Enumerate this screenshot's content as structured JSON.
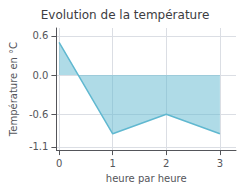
{
  "chart_data": {
    "type": "area",
    "title": "Evolution de la température",
    "xlabel": "heure par heure",
    "ylabel": "Température en °C",
    "x": [
      0,
      1,
      2,
      3
    ],
    "values": [
      0.5,
      -0.9,
      -0.6,
      -0.9
    ],
    "color": "#60b8d0",
    "xlim": [
      -0.05,
      3.3
    ],
    "xticks": [
      0,
      1,
      2,
      3
    ],
    "ylim": [
      -1.15,
      0.72
    ],
    "yticks": [
      -1.1,
      -0.6,
      {
        "value": 0,
        "label": "0.0"
      },
      0.6
    ],
    "grid": true
  }
}
